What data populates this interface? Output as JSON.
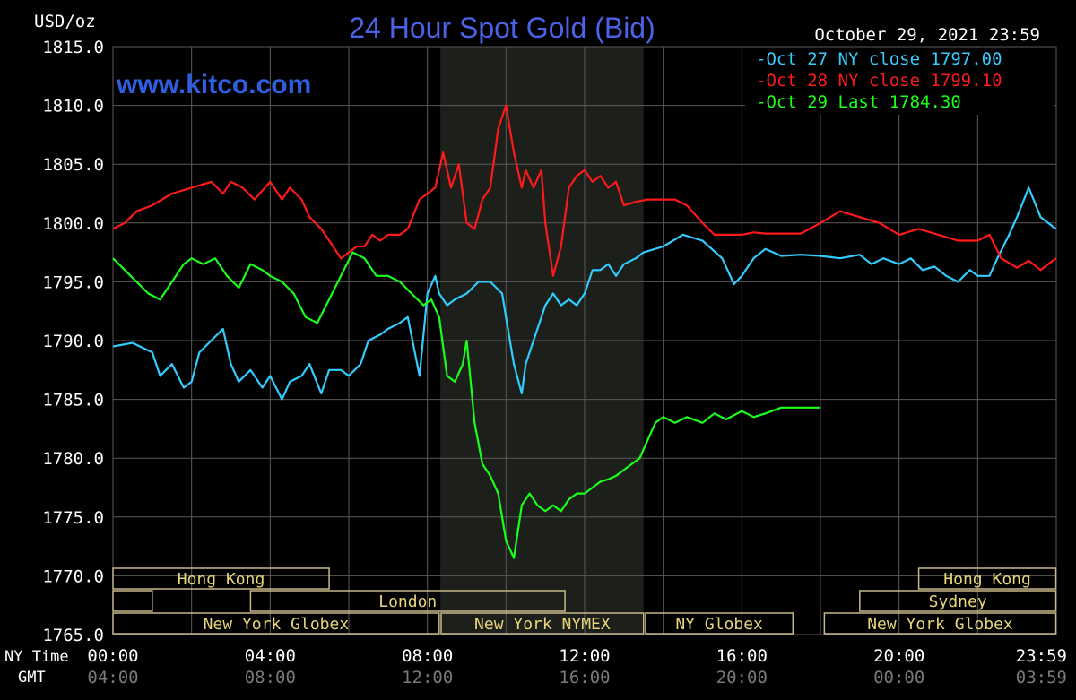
{
  "chart_data": {
    "type": "line",
    "title": "24 Hour Spot Gold (Bid)",
    "ylabel": "USD/oz",
    "website": "www.kitco.com",
    "timestamp": "October 29, 2021 23:59",
    "ylim": [
      1765,
      1815
    ],
    "y_ticks": [
      "1815.0",
      "1810.0",
      "1805.0",
      "1800.0",
      "1795.0",
      "1790.0",
      "1785.0",
      "1780.0",
      "1775.0",
      "1770.0",
      "1765.0"
    ],
    "x_axis_ny_label": "NY Time",
    "x_axis_gmt_label": "GMT",
    "x_ticks_ny": [
      "00:00",
      "04:00",
      "08:00",
      "12:00",
      "16:00",
      "20:00",
      "23:59"
    ],
    "x_ticks_gmt": [
      "04:00",
      "08:00",
      "12:00",
      "16:00",
      "20:00",
      "00:00",
      "03:59"
    ],
    "grid": true,
    "legend_position": "top-right",
    "shaded_session_hours": [
      8.33,
      13.5
    ],
    "series": [
      {
        "name": "Oct 27 NY close 1797.00",
        "color": "#33ccff",
        "x": [
          0,
          0.5,
          1,
          1.2,
          1.5,
          1.8,
          2,
          2.2,
          2.5,
          2.8,
          3,
          3.2,
          3.5,
          3.8,
          4,
          4.3,
          4.5,
          4.8,
          5,
          5.3,
          5.5,
          5.8,
          6,
          6.3,
          6.5,
          6.8,
          7,
          7.3,
          7.5,
          7.8,
          8,
          8.2,
          8.3,
          8.5,
          8.7,
          9,
          9.3,
          9.6,
          9.9,
          10,
          10.2,
          10.4,
          10.5,
          10.7,
          10.9,
          11,
          11.2,
          11.4,
          11.6,
          11.8,
          12,
          12.2,
          12.4,
          12.6,
          12.8,
          13,
          13.3,
          13.5,
          14,
          14.5,
          15,
          15.5,
          15.8,
          16,
          16.3,
          16.6,
          17,
          17.5,
          18,
          18.5,
          19,
          19.3,
          19.6,
          20,
          20.3,
          20.6,
          20.9,
          21.2,
          21.5,
          21.8,
          22,
          22.3,
          22.5,
          22.8,
          23,
          23.3,
          23.6,
          23.99
        ],
        "values": [
          1789.5,
          1789.8,
          1789,
          1787,
          1788,
          1786,
          1786.5,
          1789,
          1790,
          1791,
          1788,
          1786.5,
          1787.5,
          1786,
          1787,
          1785,
          1786.5,
          1787,
          1788,
          1785.5,
          1787.5,
          1787.5,
          1787,
          1788,
          1790,
          1790.5,
          1791,
          1791.5,
          1792,
          1787,
          1794,
          1795.5,
          1794,
          1793,
          1793.5,
          1794,
          1795,
          1795,
          1794,
          1792,
          1788,
          1785.5,
          1788,
          1790,
          1792,
          1793,
          1794,
          1793,
          1793.5,
          1793,
          1794,
          1796,
          1796,
          1796.5,
          1795.5,
          1796.5,
          1797,
          1797.5,
          1798,
          1799,
          1798.5,
          1797,
          1794.8,
          1795.5,
          1797,
          1797.8,
          1797.2,
          1797.3,
          1797.2,
          1797,
          1797.3,
          1796.5,
          1797,
          1796.5,
          1797,
          1796,
          1796.3,
          1795.5,
          1795,
          1796,
          1795.5,
          1795.5,
          1797,
          1799,
          1800.5,
          1803,
          1800.5,
          1799.5
        ]
      },
      {
        "name": "Oct 28 NY close 1799.10",
        "color": "#ff1a1a",
        "x": [
          0,
          0.3,
          0.6,
          1,
          1.5,
          2,
          2.5,
          2.8,
          3,
          3.3,
          3.6,
          4,
          4.3,
          4.5,
          4.8,
          5,
          5.3,
          5.6,
          5.8,
          6,
          6.2,
          6.4,
          6.6,
          6.8,
          7,
          7.3,
          7.5,
          7.8,
          8,
          8.2,
          8.4,
          8.6,
          8.8,
          9,
          9.2,
          9.4,
          9.6,
          9.8,
          10,
          10.2,
          10.4,
          10.5,
          10.7,
          10.9,
          11,
          11.2,
          11.4,
          11.6,
          11.8,
          12,
          12.2,
          12.4,
          12.6,
          12.8,
          13,
          13.3,
          13.6,
          14,
          14.3,
          14.6,
          15,
          15.3,
          15.6,
          16,
          16.3,
          16.6,
          17,
          17.5,
          18,
          18.5,
          19,
          19.5,
          20,
          20.5,
          21,
          21.5,
          22,
          22.3,
          22.6,
          23,
          23.3,
          23.6,
          23.99
        ],
        "values": [
          1799.5,
          1800,
          1801,
          1801.5,
          1802.5,
          1803,
          1803.5,
          1802.5,
          1803.5,
          1803,
          1802,
          1803.5,
          1802,
          1803,
          1802,
          1800.5,
          1799.5,
          1798,
          1797,
          1797.5,
          1798,
          1798,
          1799,
          1798.5,
          1799,
          1799,
          1799.5,
          1802,
          1802.5,
          1803,
          1806,
          1803,
          1805,
          1800,
          1799.5,
          1802,
          1803,
          1808,
          1810,
          1806,
          1803,
          1804.5,
          1803,
          1804.5,
          1800,
          1795.5,
          1798,
          1803,
          1804,
          1804.5,
          1803.5,
          1804,
          1803,
          1803.5,
          1801.5,
          1801.8,
          1802,
          1802,
          1802,
          1801.5,
          1800,
          1799,
          1799,
          1799,
          1799.2,
          1799.1,
          1799.1,
          1799.1,
          1800,
          1801,
          1800.5,
          1800,
          1799,
          1799.5,
          1799,
          1798.5,
          1798.5,
          1799,
          1797,
          1796.2,
          1796.8,
          1796,
          1797
        ]
      },
      {
        "name": "Oct 29 Last 1784.30",
        "color": "#1aff1a",
        "x": [
          0,
          0.3,
          0.6,
          0.9,
          1.2,
          1.5,
          1.8,
          2,
          2.3,
          2.6,
          2.9,
          3.2,
          3.5,
          3.8,
          4,
          4.3,
          4.6,
          4.9,
          5.2,
          5.5,
          5.8,
          6.1,
          6.4,
          6.7,
          7,
          7.3,
          7.6,
          7.9,
          8.1,
          8.3,
          8.5,
          8.7,
          8.9,
          9,
          9.2,
          9.4,
          9.6,
          9.8,
          10,
          10.2,
          10.4,
          10.6,
          10.8,
          11,
          11.2,
          11.4,
          11.6,
          11.8,
          12,
          12.2,
          12.4,
          12.6,
          12.8,
          13,
          13.2,
          13.4,
          13.6,
          13.8,
          14,
          14.3,
          14.6,
          15,
          15.3,
          15.6,
          16,
          16.3,
          16.6,
          17,
          17.5,
          17.99
        ],
        "values": [
          1797,
          1796,
          1795,
          1794,
          1793.5,
          1795,
          1796.5,
          1797,
          1796.5,
          1797,
          1795.5,
          1794.5,
          1796.5,
          1796,
          1795.5,
          1795,
          1794,
          1792,
          1791.5,
          1793.5,
          1795.5,
          1797.5,
          1797,
          1795.5,
          1795.5,
          1795,
          1794,
          1793,
          1793.5,
          1792,
          1787,
          1786.5,
          1788,
          1790,
          1783,
          1779.5,
          1778.5,
          1777,
          1773,
          1771.5,
          1776,
          1777,
          1776,
          1775.5,
          1776,
          1775.5,
          1776.5,
          1777,
          1777,
          1777.5,
          1778,
          1778.2,
          1778.5,
          1779,
          1779.5,
          1780,
          1781.5,
          1783,
          1783.5,
          1783,
          1783.5,
          1783,
          1783.8,
          1783.3,
          1784,
          1783.5,
          1783.8,
          1784.3,
          1784.3,
          1784.3
        ]
      }
    ],
    "sessions": [
      {
        "label": "Hong Kong",
        "row": 0,
        "start": 0,
        "end": 5.5
      },
      {
        "label": "Hong Kong",
        "row": 0,
        "start": 20.5,
        "end": 23.99
      },
      {
        "label": "",
        "row": 1,
        "start": 0,
        "end": 1
      },
      {
        "label": "London",
        "row": 1,
        "start": 3.5,
        "end": 11.5
      },
      {
        "label": "Sydney",
        "row": 1,
        "start": 19,
        "end": 23.99
      },
      {
        "label": "New York Globex",
        "row": 2,
        "start": 0,
        "end": 8.3
      },
      {
        "label": "New York NYMEX",
        "row": 2,
        "start": 8.35,
        "end": 13.5
      },
      {
        "label": "NY Globex",
        "row": 2,
        "start": 13.55,
        "end": 17.3
      },
      {
        "label": "New York Globex",
        "row": 2,
        "start": 18.1,
        "end": 23.99
      }
    ]
  }
}
